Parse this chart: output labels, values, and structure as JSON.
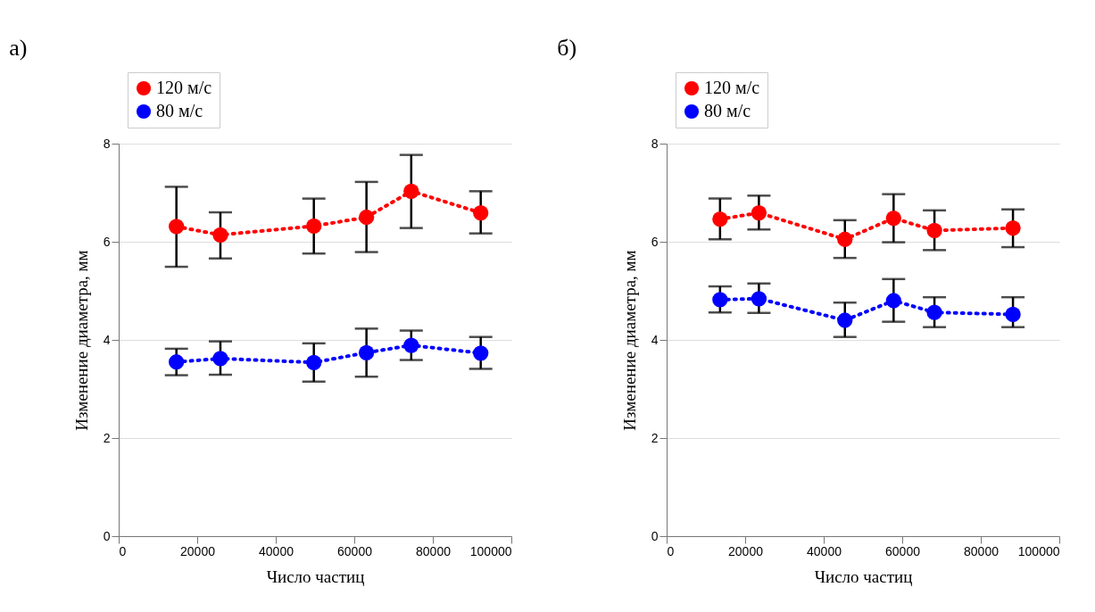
{
  "chart_data": [
    {
      "type": "line",
      "title": "а)",
      "xlabel": "Число частиц",
      "ylabel": "Изменение диаметра, мм",
      "xlim": [
        0,
        100000
      ],
      "xticks": [
        0,
        20000,
        40000,
        60000,
        80000,
        100000
      ],
      "ylim": [
        0,
        8
      ],
      "yticks": [
        0,
        2,
        4,
        6,
        8
      ],
      "grid": "y",
      "legend": "top left",
      "marker": "circle",
      "line_style": "dotted",
      "series": [
        {
          "name": "120 м/с",
          "color": "#ff0000",
          "x": [
            14700,
            25900,
            49700,
            63100,
            74500,
            92200
          ],
          "values": [
            6.31,
            6.14,
            6.32,
            6.5,
            7.03,
            6.59
          ],
          "errors": [
            [
              5.49,
              7.12
            ],
            [
              5.66,
              6.6
            ],
            [
              5.76,
              6.88
            ],
            [
              5.79,
              7.22
            ],
            [
              6.28,
              7.77
            ],
            [
              6.17,
              7.03
            ]
          ]
        },
        {
          "name": "80 м/с",
          "color": "#0000ff",
          "x": [
            14700,
            25900,
            49700,
            63100,
            74500,
            92200
          ],
          "values": [
            3.55,
            3.62,
            3.54,
            3.74,
            3.89,
            3.73
          ],
          "errors": [
            [
              3.28,
              3.82
            ],
            [
              3.29,
              3.97
            ],
            [
              3.15,
              3.93
            ],
            [
              3.25,
              4.23
            ],
            [
              3.59,
              4.19
            ],
            [
              3.41,
              4.06
            ]
          ]
        }
      ]
    },
    {
      "type": "line",
      "title": "б)",
      "xlabel": "Число частиц",
      "ylabel": "Изменение диаметра, мм",
      "xlim": [
        0,
        100000
      ],
      "xticks": [
        0,
        20000,
        40000,
        60000,
        80000,
        100000
      ],
      "ylim": [
        0,
        8
      ],
      "yticks": [
        0,
        2,
        4,
        6,
        8
      ],
      "grid": "y",
      "legend": "top left",
      "marker": "circle",
      "line_style": "dotted",
      "series": [
        {
          "name": "120 м/с",
          "color": "#ff0000",
          "x": [
            13600,
            23500,
            45400,
            57800,
            68200,
            88200
          ],
          "values": [
            6.46,
            6.59,
            6.05,
            6.48,
            6.23,
            6.28
          ],
          "errors": [
            [
              6.05,
              6.88
            ],
            [
              6.25,
              6.94
            ],
            [
              5.67,
              6.44
            ],
            [
              5.99,
              6.97
            ],
            [
              5.83,
              6.64
            ],
            [
              5.89,
              6.66
            ]
          ]
        },
        {
          "name": "80 м/с",
          "color": "#0000ff",
          "x": [
            13600,
            23500,
            45400,
            57800,
            68200,
            88200
          ],
          "values": [
            4.82,
            4.84,
            4.4,
            4.8,
            4.56,
            4.52
          ],
          "errors": [
            [
              4.56,
              5.09
            ],
            [
              4.55,
              5.15
            ],
            [
              4.06,
              4.76
            ],
            [
              4.37,
              5.24
            ],
            [
              4.26,
              4.87
            ],
            [
              4.26,
              4.87
            ]
          ]
        }
      ]
    }
  ]
}
